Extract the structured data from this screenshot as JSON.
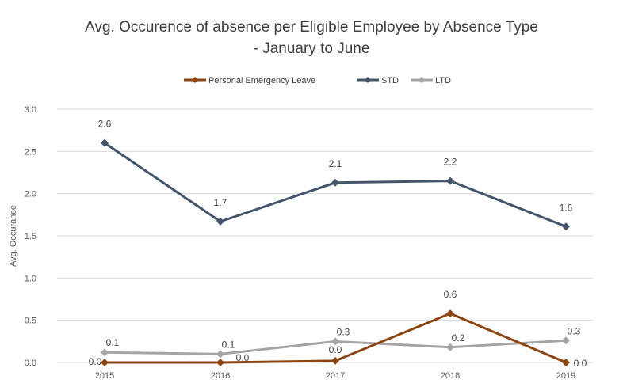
{
  "chart_data": {
    "type": "line",
    "title_line1": "Avg. Occurence of absence per Eligible Employee by Absence Type",
    "title_line2": "- January to June",
    "ylabel": "Avg. Occurance",
    "xlabel": "",
    "categories": [
      "2015",
      "2016",
      "2017",
      "2018",
      "2019"
    ],
    "ylim": [
      0,
      3.0
    ],
    "yticks": [
      "0.0",
      "0.5",
      "1.0",
      "1.5",
      "2.0",
      "2.5",
      "3.0"
    ],
    "grid": true,
    "legend_position": "top",
    "series": [
      {
        "name": "Personal Emergency Leave",
        "color": "#8B4513",
        "values": [
          0.0,
          0.0,
          0.02,
          0.58,
          0.0
        ],
        "labels": [
          "0.0",
          "0.0",
          "0.0",
          "0.6",
          "0.0"
        ]
      },
      {
        "name": "STD",
        "color": "#44546A",
        "values": [
          2.6,
          1.67,
          2.13,
          2.15,
          1.61
        ],
        "labels": [
          "2.6",
          "1.7",
          "2.1",
          "2.2",
          "1.6"
        ]
      },
      {
        "name": "LTD",
        "color": "#A5A5A5",
        "values": [
          0.12,
          0.1,
          0.25,
          0.18,
          0.26
        ],
        "labels": [
          "0.1",
          "0.1",
          "0.3",
          "0.2",
          "0.3"
        ]
      }
    ]
  }
}
